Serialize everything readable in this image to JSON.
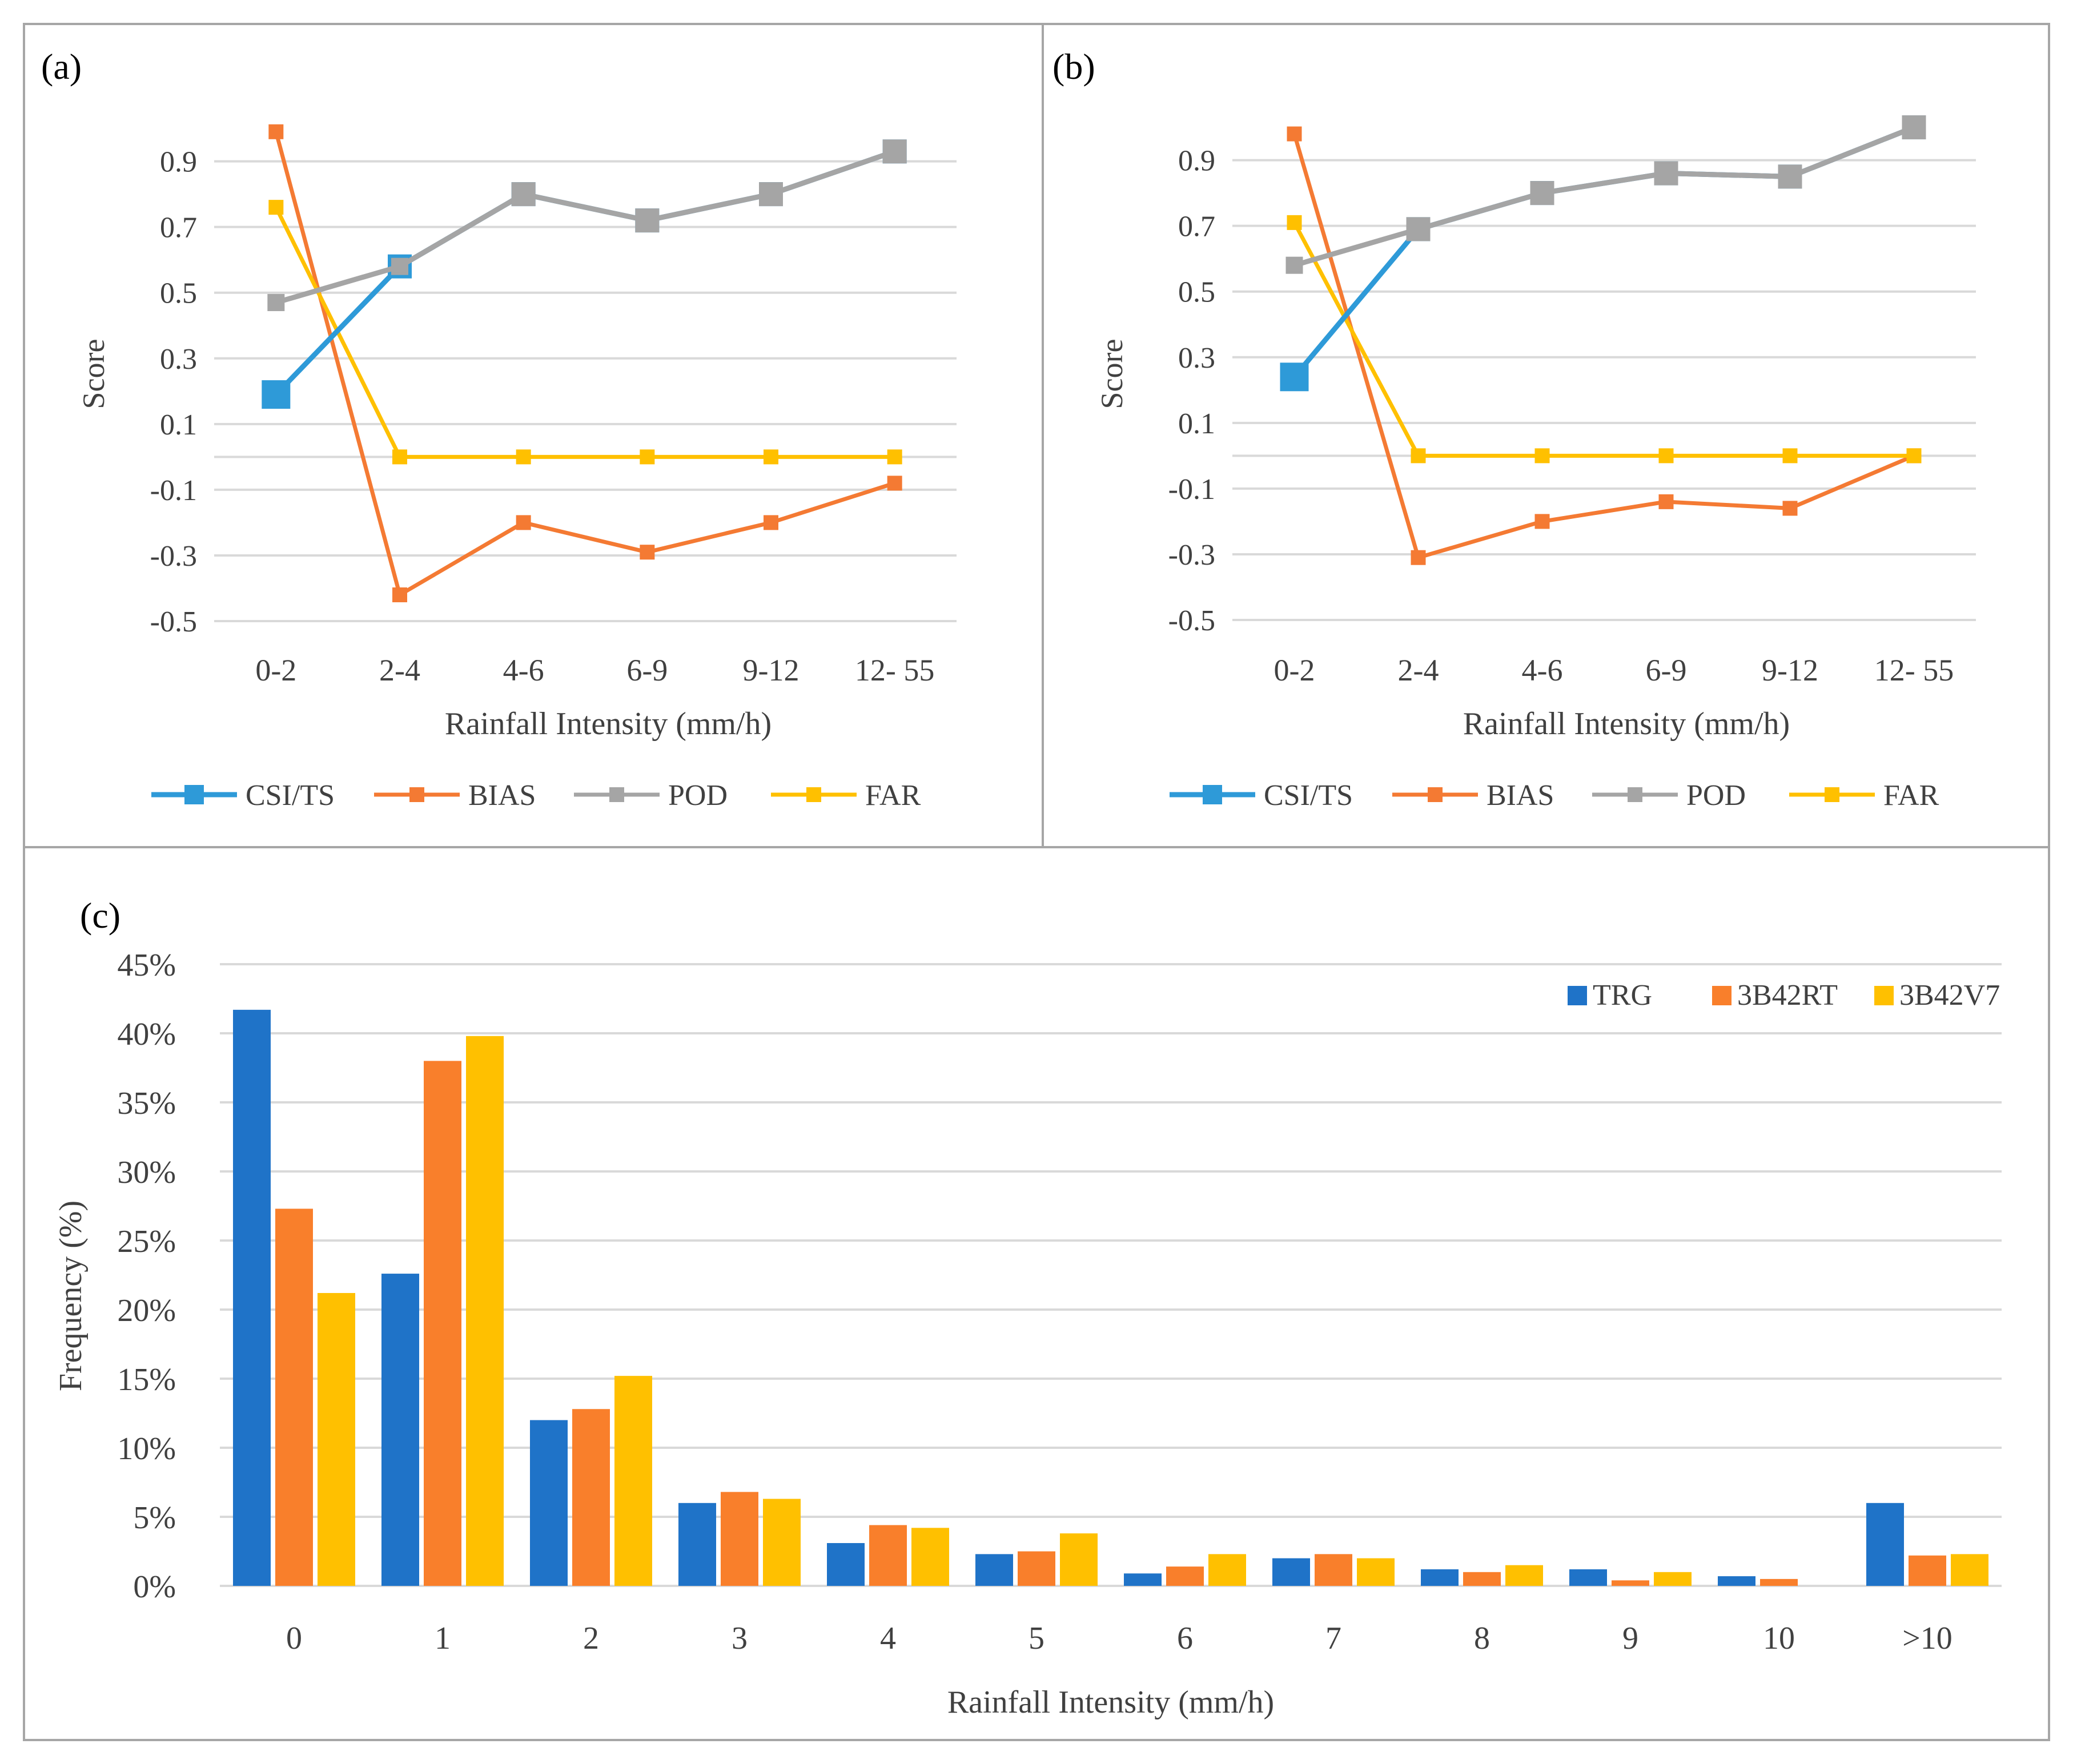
{
  "colors": {
    "csi": "#2E9AD8",
    "bias": "#F47A33",
    "pod": "#A5A5A5",
    "far": "#FFC000",
    "trg": "#1F73C8",
    "rt": "#F97F2B",
    "v7": "#FFC000",
    "grid": "#D9D9D9",
    "border": "#A6A6A6",
    "text": "#404040"
  },
  "chart_data": [
    {
      "type": "line",
      "panel_label": "(a)",
      "title": "",
      "xlabel": "Rainfall Intensity (mm/h)",
      "ylabel": "Score",
      "categories": [
        "0-2",
        "2-4",
        "4-6",
        "6-9",
        "9-12",
        "12- 55"
      ],
      "yticks": [
        "0.9",
        "0.7",
        "0.5",
        "0.3",
        "0.1",
        "-0.1",
        "-0.3",
        "-0.5"
      ],
      "ylim": [
        -0.5,
        1.0
      ],
      "series": [
        {
          "name": "CSI/TS",
          "values": [
            0.19,
            0.58,
            0.8,
            0.72,
            0.8,
            0.93
          ]
        },
        {
          "name": "BIAS",
          "values": [
            0.99,
            -0.42,
            -0.2,
            -0.29,
            -0.2,
            -0.08
          ]
        },
        {
          "name": "POD",
          "values": [
            0.47,
            0.58,
            0.8,
            0.72,
            0.8,
            0.93
          ]
        },
        {
          "name": "FAR",
          "values": [
            0.76,
            0.0,
            0.0,
            0.0,
            0.0,
            0.0
          ]
        }
      ],
      "legend": "bottom"
    },
    {
      "type": "line",
      "panel_label": "(b)",
      "title": "",
      "xlabel": "Rainfall Intensity (mm/h)",
      "ylabel": "Score",
      "categories": [
        "0-2",
        "2-4",
        "4-6",
        "6-9",
        "9-12",
        "12- 55"
      ],
      "yticks": [
        "0.9",
        "0.7",
        "0.5",
        "0.3",
        "0.1",
        "-0.1",
        "-0.3",
        "-0.5"
      ],
      "ylim": [
        -0.5,
        1.0
      ],
      "series": [
        {
          "name": "CSI/TS",
          "values": [
            0.24,
            0.69,
            0.8,
            0.86,
            0.85,
            1.0
          ]
        },
        {
          "name": "BIAS",
          "values": [
            0.98,
            -0.31,
            -0.2,
            -0.14,
            -0.16,
            0.0
          ]
        },
        {
          "name": "POD",
          "values": [
            0.58,
            0.69,
            0.8,
            0.86,
            0.85,
            1.0
          ]
        },
        {
          "name": "FAR",
          "values": [
            0.71,
            0.0,
            0.0,
            0.0,
            0.0,
            0.0
          ]
        }
      ],
      "legend": "bottom"
    },
    {
      "type": "bar",
      "panel_label": "(c)",
      "title": "",
      "xlabel": "Rainfall Intensity (mm/h)",
      "ylabel": "Frequency (%)",
      "categories": [
        "0",
        "1",
        "2",
        "3",
        "4",
        "5",
        "6",
        "7",
        "8",
        "9",
        "10",
        ">10"
      ],
      "yticks": [
        "0%",
        "5%",
        "10%",
        "15%",
        "20%",
        "25%",
        "30%",
        "35%",
        "40%",
        "45%"
      ],
      "ylim": [
        0,
        45
      ],
      "series": [
        {
          "name": "TRG",
          "values": [
            41.7,
            22.6,
            12.0,
            6.0,
            3.1,
            2.3,
            0.9,
            2.0,
            1.2,
            1.2,
            0.7,
            6.0
          ]
        },
        {
          "name": "3B42RT",
          "values": [
            27.3,
            38.0,
            12.8,
            6.8,
            4.4,
            2.5,
            1.4,
            2.3,
            1.0,
            0.4,
            0.5,
            2.2
          ]
        },
        {
          "name": "3B42V7",
          "values": [
            21.2,
            39.8,
            15.2,
            6.3,
            4.2,
            3.8,
            2.3,
            2.0,
            1.5,
            1.0,
            0.0,
            2.3
          ]
        }
      ],
      "legend": "top-right"
    }
  ]
}
